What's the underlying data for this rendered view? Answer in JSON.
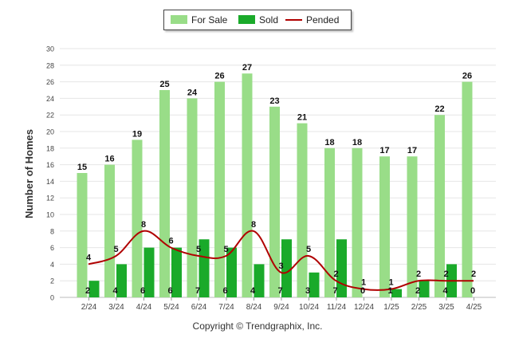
{
  "chart_data": {
    "type": "bar",
    "categories": [
      "2/24",
      "3/24",
      "4/24",
      "5/24",
      "6/24",
      "7/24",
      "8/24",
      "9/24",
      "10/24",
      "11/24",
      "12/24",
      "1/25",
      "2/25",
      "3/25",
      "4/25"
    ],
    "series": [
      {
        "name": "For Sale",
        "kind": "bar",
        "color": "#99dd88",
        "values": [
          15,
          16,
          19,
          25,
          24,
          26,
          27,
          23,
          21,
          18,
          18,
          17,
          17,
          22,
          26
        ]
      },
      {
        "name": "Sold",
        "kind": "bar",
        "color": "#1aaa2a",
        "values": [
          2,
          4,
          6,
          6,
          7,
          6,
          4,
          7,
          3,
          7,
          0,
          1,
          2,
          4,
          0
        ]
      },
      {
        "name": "Pended",
        "kind": "line",
        "color": "#b00000",
        "values": [
          4,
          5,
          8,
          6,
          5,
          5,
          8,
          3,
          5,
          2,
          1,
          1,
          2,
          2,
          2
        ]
      }
    ],
    "ylabel": "Number of Homes",
    "ylim": [
      0,
      30
    ],
    "yticks": [
      0,
      2,
      4,
      6,
      8,
      10,
      12,
      14,
      16,
      18,
      20,
      22,
      24,
      26,
      28,
      30
    ],
    "grid": true,
    "legend_position": "top-center"
  },
  "footer": {
    "copyright": "Copyright © Trendgraphix, Inc."
  }
}
